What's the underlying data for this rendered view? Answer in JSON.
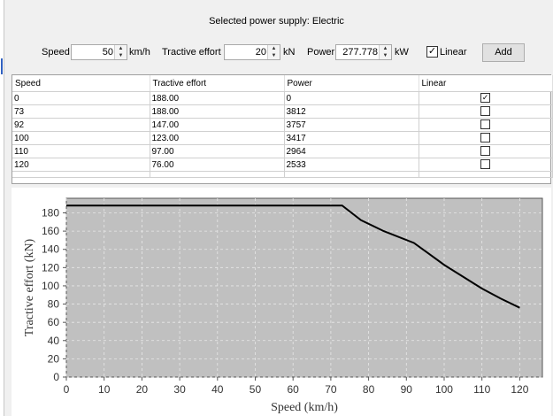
{
  "header": {
    "title": "Selected power supply: Electric"
  },
  "controls": {
    "speed_label": "Speed",
    "speed_value": "50",
    "speed_unit": "km/h",
    "effort_label": "Tractive effort",
    "effort_value": "20",
    "effort_unit": "kN",
    "power_label": "Power",
    "power_value": "277.778",
    "power_unit": "kW",
    "linear_label": "Linear",
    "linear_checked": true,
    "add_label": "Add"
  },
  "table": {
    "columns": [
      "Speed",
      "Tractive effort",
      "Power",
      "Linear"
    ],
    "rows": [
      {
        "speed": "0",
        "effort": "188.00",
        "power": "0",
        "linear": true
      },
      {
        "speed": "73",
        "effort": "188.00",
        "power": "3812",
        "linear": false
      },
      {
        "speed": "92",
        "effort": "147.00",
        "power": "3757",
        "linear": false
      },
      {
        "speed": "100",
        "effort": "123.00",
        "power": "3417",
        "linear": false
      },
      {
        "speed": "110",
        "effort": "97.00",
        "power": "2964",
        "linear": false
      },
      {
        "speed": "120",
        "effort": "76.00",
        "power": "2533",
        "linear": false
      }
    ]
  },
  "chart_data": {
    "type": "line",
    "title": "",
    "xlabel": "Speed (km/h)",
    "ylabel": "Tractive effort (kN)",
    "xlim": [
      0,
      126
    ],
    "ylim": [
      0,
      196
    ],
    "xticks": [
      0,
      10,
      20,
      30,
      40,
      50,
      60,
      70,
      80,
      90,
      100,
      110,
      120
    ],
    "yticks": [
      0,
      20,
      40,
      60,
      80,
      100,
      120,
      140,
      160,
      180
    ],
    "grid": true,
    "background": "#c0c0c0",
    "line_color": "#000000",
    "series": [
      {
        "x": [
          0,
          73,
          78,
          84,
          92,
          96,
          100,
          105,
          110,
          115,
          120
        ],
        "y": [
          188,
          188,
          172,
          160,
          147,
          135,
          123,
          110,
          97,
          86,
          76
        ]
      }
    ]
  }
}
